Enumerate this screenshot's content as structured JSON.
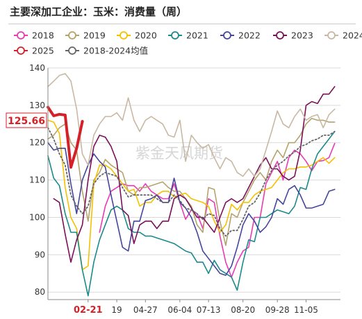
{
  "title": "主要深加工企业：玉米：消费量（周）",
  "watermark": "紫金天风期货",
  "last_value_label": "125.66",
  "chart_data": {
    "type": "line",
    "ylim": [
      78,
      140
    ],
    "yticks": [
      80,
      90,
      100,
      110,
      120,
      130,
      140
    ],
    "xlim": [
      0,
      51
    ],
    "xticks": [
      {
        "x": 7,
        "label": "02-21",
        "highlight": true
      },
      {
        "x": 12,
        "label": "19"
      },
      {
        "x": 17,
        "label": "04-27"
      },
      {
        "x": 23,
        "label": "06-04"
      },
      {
        "x": 28,
        "label": "07-13"
      },
      {
        "x": 34,
        "label": "08-20"
      },
      {
        "x": 40,
        "label": "09-28"
      },
      {
        "x": 45,
        "label": "11-05"
      }
    ],
    "legend_position": "top",
    "grid": "horizontal",
    "series": [
      {
        "name": "2018",
        "color": "#e83ab5",
        "width": 1.6,
        "marker": "circle",
        "values": [
          null,
          null,
          null,
          null,
          null,
          null,
          null,
          null,
          null,
          96,
          103,
          107,
          108,
          109,
          108.5,
          108.5,
          107,
          109,
          107,
          106,
          105,
          105,
          109,
          104,
          99.5,
          102,
          101,
          97,
          105,
          104,
          95,
          88,
          84,
          88,
          91,
          92,
          100,
          100,
          109,
          112,
          115,
          110,
          116,
          118,
          117,
          115,
          112.5,
          115,
          115.2,
          116,
          119.8
        ]
      },
      {
        "name": "2019",
        "color": "#b5a36c",
        "width": 1.6,
        "marker": "circle",
        "values": [
          121,
          122,
          124,
          125,
          120,
          118,
          107,
          99,
          110,
          112,
          115.5,
          114,
          113,
          112,
          107,
          106,
          108,
          108,
          108.5,
          109,
          109.5,
          108,
          107,
          107,
          105,
          103,
          98,
          96,
          108,
          107.5,
          99,
          92.5,
          101,
          100,
          104,
          107,
          110,
          112,
          110,
          115,
          118,
          116,
          120,
          120,
          122,
          125,
          126.5,
          126,
          126,
          125.5,
          125.5
        ]
      },
      {
        "name": "2020",
        "color": "#f5c000",
        "width": 1.6,
        "marker": "circle",
        "values": [
          126,
          125.5,
          122.5,
          108,
          100,
          97,
          86,
          87,
          109,
          114,
          114,
          113,
          111,
          109,
          107,
          107.5,
          103,
          104,
          104,
          106,
          107,
          107,
          105.5,
          106,
          106.5,
          105,
          104.5,
          104,
          103,
          99,
          96,
          98,
          103.5,
          102,
          104,
          104,
          106,
          107,
          107.5,
          108,
          110,
          112,
          113,
          113,
          113.5,
          113.5,
          114,
          115,
          116,
          114.5,
          116
        ]
      },
      {
        "name": "2021",
        "color": "#1a8a8a",
        "width": 1.6,
        "marker": "circle",
        "values": [
          116.5,
          110.5,
          108.5,
          101,
          96,
          96,
          86,
          79,
          88,
          94,
          98,
          102,
          103,
          102,
          97,
          96,
          96,
          95,
          95,
          94.5,
          94,
          93.5,
          93,
          92,
          91,
          90.5,
          88,
          88,
          85,
          88.5,
          86,
          85,
          84,
          80.5,
          88,
          94,
          93.5,
          100,
          100,
          101,
          102,
          101.5,
          101,
          103,
          108,
          107.5,
          113,
          117,
          119,
          121,
          123
        ]
      },
      {
        "name": "2022",
        "color": "#44459b",
        "width": 1.6,
        "marker": "circle",
        "values": [
          120,
          118,
          118.5,
          118.5,
          109,
          101,
          110,
          114,
          117,
          115,
          113.5,
          106,
          99,
          92,
          91,
          99,
          99,
          104.5,
          105,
          106,
          104,
          104,
          110.5,
          104,
          102.5,
          100,
          96,
          91,
          89,
          87,
          85,
          84.5,
          87,
          92,
          98,
          101,
          99,
          96,
          97.5,
          100,
          105,
          103.5,
          107.5,
          108.5,
          106,
          102.5,
          102.5,
          103,
          103.5,
          107,
          107.5
        ]
      },
      {
        "name": "2023",
        "color": "#7a1059",
        "width": 1.6,
        "marker": "circle",
        "values": [
          null,
          105,
          104,
          95.5,
          88,
          94,
          98,
          110,
          119,
          122,
          121.5,
          119,
          115,
          102,
          100.5,
          93,
          98,
          99,
          99,
          97,
          99,
          99,
          105,
          106,
          105,
          102.5,
          100,
          100,
          98,
          96,
          100,
          104,
          105,
          104,
          105,
          108,
          111,
          114,
          116,
          113,
          113,
          111,
          110,
          111,
          118,
          130,
          131,
          130.5,
          133,
          133,
          135
        ]
      },
      {
        "name": "2024",
        "color": "#c8b8a3",
        "width": 1.6,
        "marker": "circle",
        "values": [
          135,
          136.5,
          138,
          138.5,
          136.5,
          129,
          117,
          114,
          122,
          125,
          127,
          127,
          128,
          126,
          132,
          126,
          123,
          126,
          127,
          126,
          125,
          122,
          121.5,
          126,
          115,
          122,
          120,
          118.5,
          119.5,
          116,
          113,
          116,
          115,
          112,
          111,
          113,
          111,
          113,
          118,
          123,
          128.5,
          125,
          124,
          127,
          129,
          126,
          127,
          127.5,
          124,
          127.5,
          129
        ]
      },
      {
        "name": "2025",
        "color": "#d42128",
        "width": 4,
        "marker": "circle",
        "values": [
          129.5,
          127.2,
          127.6,
          127.4,
          113.4,
          118.5,
          125.66,
          null,
          null,
          null,
          null,
          null,
          null,
          null,
          null,
          null,
          null,
          null,
          null,
          null,
          null,
          null,
          null,
          null,
          null,
          null,
          null,
          null,
          null,
          null,
          null,
          null,
          null,
          null,
          null,
          null,
          null,
          null,
          null,
          null,
          null,
          null,
          null,
          null,
          null,
          null,
          null,
          null,
          null,
          null,
          null
        ]
      },
      {
        "name": "2018-2024均值",
        "color": "#666666",
        "width": 1.8,
        "dash": "2,3",
        "marker": "circle",
        "values": [
          124,
          121,
          117,
          114,
          106,
          103,
          101,
          103,
          109,
          111,
          112,
          111.5,
          111,
          108,
          105.5,
          106,
          106,
          106,
          106,
          105,
          104,
          104,
          106,
          104.5,
          102.5,
          102,
          101,
          99.5,
          101,
          100.5,
          97,
          95,
          96.5,
          96.5,
          99.5,
          103,
          104,
          106.5,
          110,
          112.5,
          114,
          115,
          116.5,
          117.5,
          119,
          119.5,
          120.5,
          121,
          122,
          122,
          123
        ]
      }
    ]
  }
}
